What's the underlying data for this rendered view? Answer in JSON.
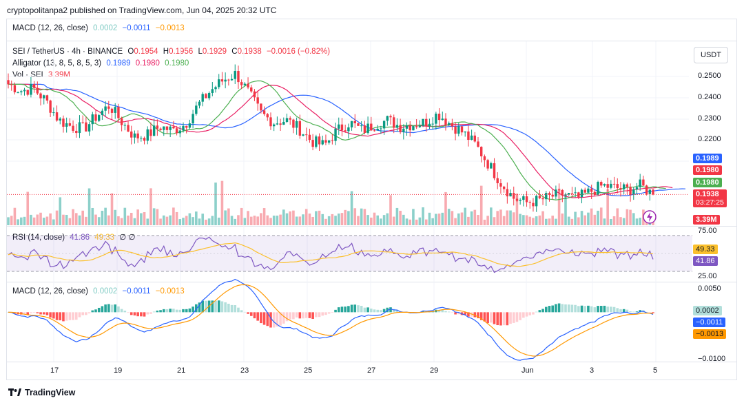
{
  "header": {
    "published": "cryptopolitanpa2 published on TradingView.com, Jun 04, 2025 20:32 UTC"
  },
  "top_macd_legend": {
    "name": "MACD (12, 26, close)",
    "hist": "0.0002",
    "macd": "−0.0011",
    "signal": "−0.0013"
  },
  "symbol_legend": {
    "name": "SEI / TetherUS · 4h · BINANCE",
    "o_lbl": "O",
    "o": "0.1954",
    "h_lbl": "H",
    "h": "0.1956",
    "l_lbl": "L",
    "l": "0.1929",
    "c_lbl": "C",
    "c": "0.1938",
    "chg": "−0.0016 (−0.82%)"
  },
  "alligator_legend": {
    "name": "Alligator (13, 8, 5, 8, 5, 3)",
    "jaw": "0.1989",
    "teeth": "0.1980",
    "lips": "0.1980"
  },
  "vol_legend": {
    "name": "Vol · SEI",
    "value": "3.39M"
  },
  "rsi_legend": {
    "name": "RSI (14, close)",
    "rsi": "41.86",
    "ma": "49.33",
    "extra": "∅ ∅"
  },
  "macd_legend": {
    "name": "MACD (12, 26, close)",
    "hist": "0.0002",
    "macd": "−0.0011",
    "signal": "−0.0013"
  },
  "currency_button": "USDT",
  "price_axis": [
    "0.2500",
    "0.2400",
    "0.2300",
    "0.2200"
  ],
  "price_labels": {
    "jaw": "0.1989",
    "teeth": "0.1980",
    "lips": "0.1980",
    "close": "0.1938",
    "countdown": "03:27:25",
    "volume": "3.39M"
  },
  "rsi_axis": {
    "top": "75.00",
    "bottom": "25.00",
    "ma": "49.33",
    "rsi": "41.86"
  },
  "macd_axis": {
    "top": "0.0050",
    "bottom": "−0.0100",
    "hist": "0.0002",
    "macd": "−0.0011",
    "signal": "−0.0013"
  },
  "time_axis": [
    "17",
    "19",
    "21",
    "23",
    "25",
    "27",
    "29",
    "Jun",
    "3",
    "5"
  ],
  "footer": {
    "brand": "TradingView"
  },
  "colors": {
    "up": "#089981",
    "down": "#f23645",
    "jaw": "#2962ff",
    "teeth": "#e91e63",
    "lips": "#4caf50",
    "rsi": "#7e57c2",
    "rsi_ma": "#fbc02d",
    "macd": "#2962ff",
    "signal": "#ff9800",
    "hist_up": "#26a69a",
    "hist_up_light": "#b2dfdb",
    "hist_down": "#ff5252",
    "hist_down_light": "#ffcdd2"
  },
  "chart_data": {
    "type": "candlestick",
    "symbol": "SEI / TetherUS",
    "interval": "4h",
    "exchange": "BINANCE",
    "ylim": [
      0.185,
      0.256
    ],
    "x_ticks": [
      "17",
      "19",
      "21",
      "23",
      "25",
      "27",
      "29",
      "Jun",
      "3",
      "5"
    ],
    "last_close": 0.1938,
    "price_path": [
      0.246,
      0.243,
      0.244,
      0.238,
      0.229,
      0.226,
      0.225,
      0.231,
      0.236,
      0.228,
      0.221,
      0.222,
      0.226,
      0.224,
      0.227,
      0.236,
      0.243,
      0.248,
      0.251,
      0.242,
      0.232,
      0.228,
      0.229,
      0.225,
      0.219,
      0.217,
      0.224,
      0.228,
      0.224,
      0.227,
      0.229,
      0.226,
      0.227,
      0.228,
      0.232,
      0.227,
      0.223,
      0.217,
      0.208,
      0.199,
      0.192,
      0.19,
      0.191,
      0.193,
      0.194,
      0.192,
      0.195,
      0.198,
      0.197,
      0.196,
      0.198,
      0.194
    ],
    "alligator_jaw_last": 0.1989,
    "alligator_teeth_last": 0.198,
    "alligator_lips_last": 0.198,
    "volume_last": "3.39M",
    "rsi_last": 41.86,
    "rsi_ma_last": 49.33,
    "rsi_bands": [
      75,
      25
    ],
    "macd_hist_last": 0.0002,
    "macd_last": -0.0011,
    "macd_signal_last": -0.0013,
    "macd_ylim": [
      -0.01,
      0.005
    ]
  }
}
